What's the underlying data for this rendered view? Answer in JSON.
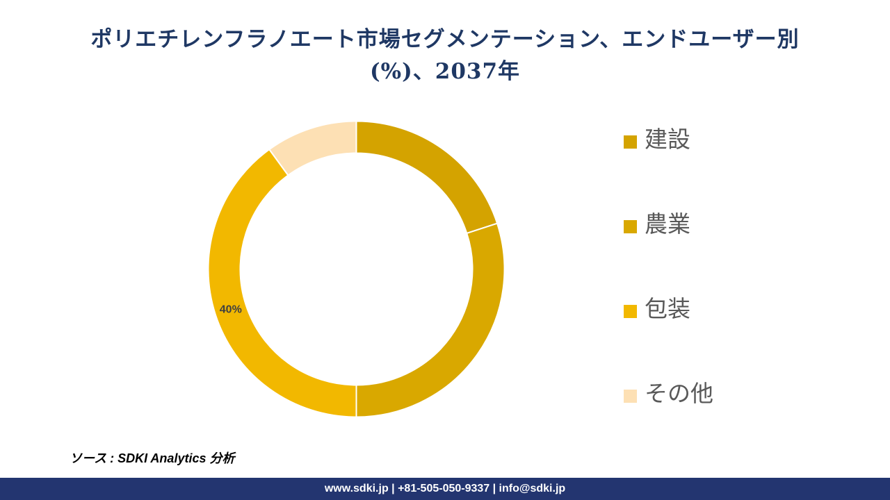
{
  "title": {
    "line1": "ポリエチレンフラノエート市場セグメンテーション、エンドユーザー別",
    "line2": "(%)、2037年"
  },
  "chart_data": {
    "type": "pie",
    "variant": "donut",
    "categories": [
      "建設",
      "農業",
      "包装",
      "その他"
    ],
    "values": [
      20,
      30,
      40,
      10
    ],
    "data_labels": [
      "",
      "",
      "40%",
      ""
    ],
    "colors": [
      "#d4a300",
      "#d9a800",
      "#f2b800",
      "#fde0b4"
    ],
    "legend_position": "right"
  },
  "legend": {
    "items": [
      {
        "label": "建設",
        "color": "#d4a300"
      },
      {
        "label": "農業",
        "color": "#d9a800"
      },
      {
        "label": "包装",
        "color": "#f2b800"
      },
      {
        "label": "その他",
        "color": "#fde0b4"
      }
    ]
  },
  "source": "ソース : SDKI Analytics 分析",
  "footer": "www.sdki.jp | +81-505-050-9337 | info@sdki.jp"
}
